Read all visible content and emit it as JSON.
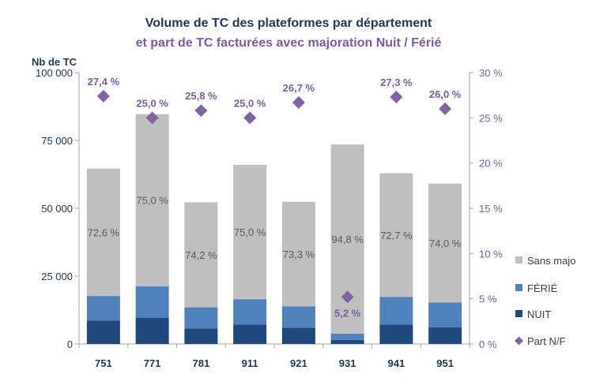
{
  "chart_data": {
    "type": "bar",
    "title": "Volume de TC des plateformes par département",
    "subtitle": "et part de TC facturées avec majoration Nuit / Férié",
    "ylabel": "Nb de TC",
    "ylim": [
      0,
      100000
    ],
    "y2lim": [
      0,
      30
    ],
    "y_ticks": [
      "0",
      "25 000",
      "50 000",
      "75 000",
      "100 000"
    ],
    "y2_ticks": [
      "0 %",
      "5 %",
      "10 %",
      "15 %",
      "20 %",
      "25 %",
      "30 %"
    ],
    "categories": [
      "751",
      "771",
      "781",
      "911",
      "921",
      "931",
      "941",
      "951"
    ],
    "series": [
      {
        "name": "NUIT",
        "color": "#1f497d",
        "values": [
          8600,
          9700,
          5700,
          7200,
          6000,
          1500,
          7200,
          6200
        ]
      },
      {
        "name": "FÉRIÉ",
        "color": "#4f81bd",
        "values": [
          9100,
          11600,
          7800,
          9300,
          7900,
          2300,
          10100,
          9100
        ]
      },
      {
        "name": "Sans majo",
        "color": "#bfbfbf",
        "values": [
          46900,
          63400,
          38700,
          49500,
          38500,
          69700,
          45600,
          43800
        ]
      }
    ],
    "bar_labels": [
      "72,6 %",
      "75,0 %",
      "74,2 %",
      "75,0 %",
      "73,3 %",
      "94,8 %",
      "72,7 %",
      "74,0 %"
    ],
    "line_series": {
      "name": "Part N/F",
      "color": "#8064a2",
      "values": [
        27.4,
        25.0,
        25.8,
        25.0,
        26.7,
        5.2,
        27.3,
        26.0
      ],
      "labels": [
        "27,4 %",
        "25,0 %",
        "25,8 %",
        "25,0 %",
        "26,7 %",
        "5,2 %",
        "27,3 %",
        "26,0 %"
      ]
    },
    "legend": [
      "Sans majo",
      "FÉRIÉ",
      "NUIT",
      "Part N/F"
    ],
    "legend_position": "right",
    "grid": false
  }
}
